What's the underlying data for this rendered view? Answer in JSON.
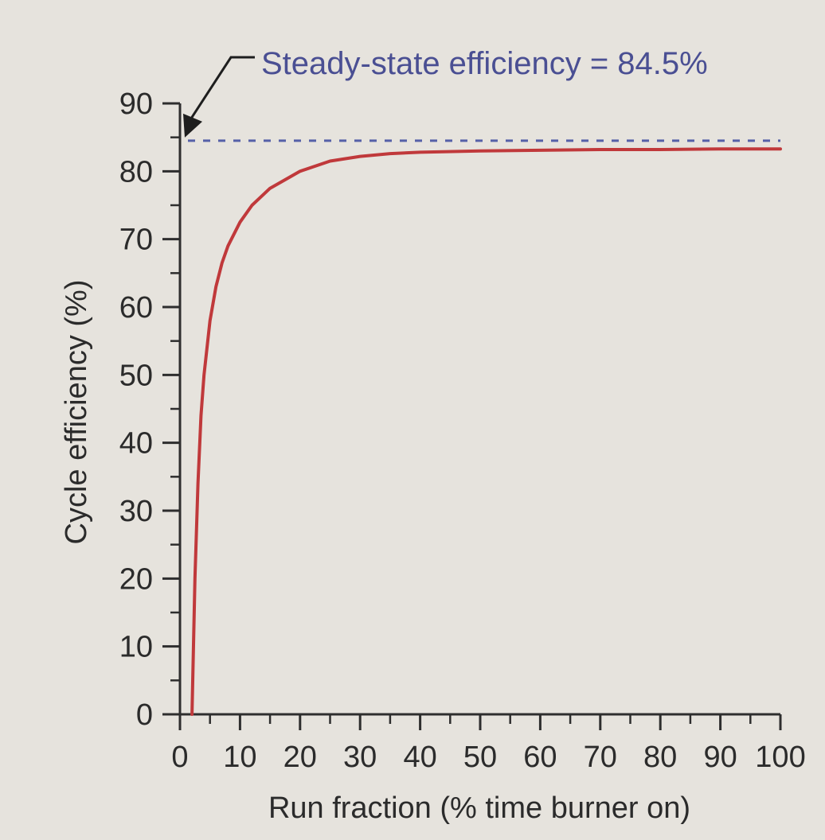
{
  "chart_data": {
    "type": "line",
    "xlabel": "Run fraction (% time burner on)",
    "ylabel": "Cycle efficiency (%)",
    "xlim": [
      0,
      100
    ],
    "ylim": [
      0,
      90
    ],
    "x_ticks": [
      0,
      10,
      20,
      30,
      40,
      50,
      60,
      70,
      80,
      90,
      100
    ],
    "y_ticks": [
      0,
      10,
      20,
      30,
      40,
      50,
      60,
      70,
      80,
      90
    ],
    "grid": false,
    "series": [
      {
        "color": "#c0393b",
        "x": [
          2,
          2.5,
          3,
          3.5,
          4,
          5,
          6,
          7,
          8,
          10,
          12,
          15,
          18,
          20,
          25,
          30,
          35,
          40,
          50,
          60,
          70,
          80,
          90,
          100
        ],
        "y": [
          0,
          20,
          34,
          44,
          50,
          58,
          63,
          66.5,
          69,
          72.5,
          75,
          77.5,
          79,
          80,
          81.5,
          82.2,
          82.6,
          82.8,
          83,
          83.1,
          83.2,
          83.2,
          83.3,
          83.3
        ]
      }
    ],
    "reference_line": {
      "y": 84.5,
      "style": "dashed",
      "color": "#5560a8"
    },
    "annotation": {
      "text": "Steady-state efficiency = 84.5%",
      "color": "#4a4f93"
    }
  }
}
